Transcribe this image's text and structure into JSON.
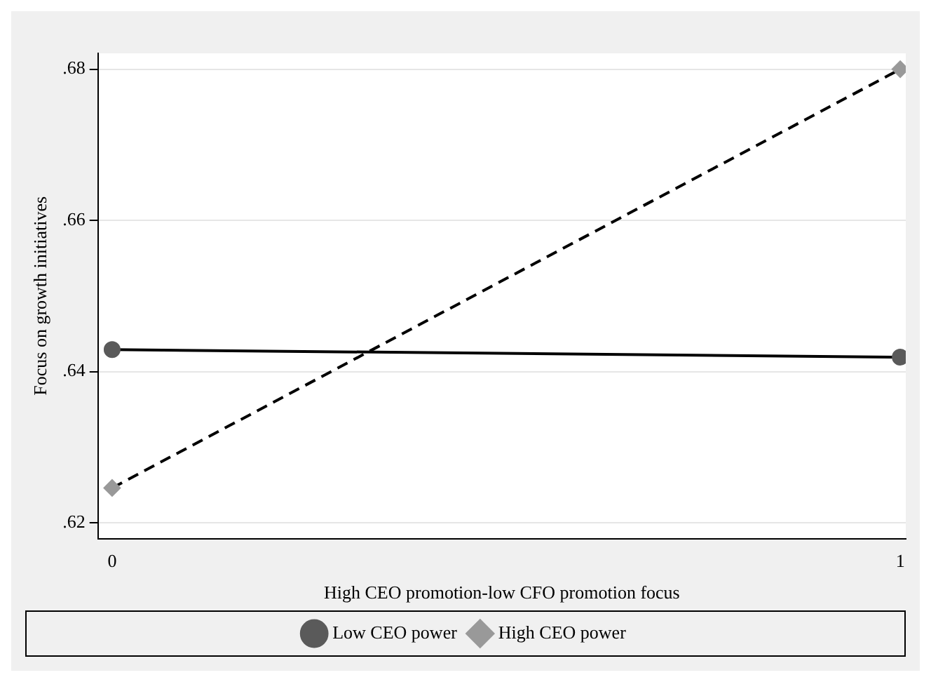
{
  "chart_data": {
    "type": "line",
    "xlabel": "High CEO promotion-low CFO promotion focus",
    "ylabel": "Focus on growth initiatives",
    "x": [
      0,
      1
    ],
    "xlim": [
      -0.018,
      1.007
    ],
    "xticks": [
      0,
      1
    ],
    "ylim": [
      0.6179,
      0.6821
    ],
    "yticks": [
      {
        "value": 0.62,
        "label": ".62"
      },
      {
        "value": 0.64,
        "label": ".64"
      },
      {
        "value": 0.66,
        "label": ".66"
      },
      {
        "value": 0.68,
        "label": ".68"
      }
    ],
    "series": [
      {
        "name": "Low CEO power",
        "color": "#000000",
        "values": [
          0.6429,
          0.6419
        ],
        "marker": "circle",
        "line_style": "solid"
      },
      {
        "name": "High CEO power",
        "color": "#000000",
        "values": [
          0.6246,
          0.68
        ],
        "marker": "diamond",
        "line_style": "dashed"
      }
    ],
    "grid": "y",
    "legend": "bottom"
  }
}
